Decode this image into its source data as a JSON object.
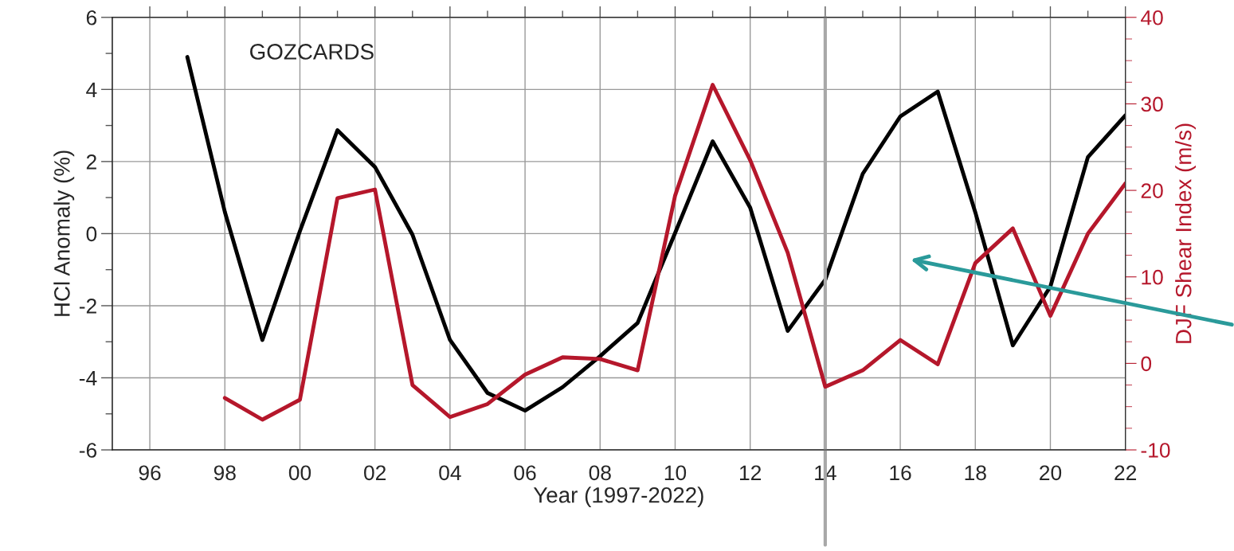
{
  "chart_data": {
    "type": "line",
    "xlabel": "Year (1997-2022)",
    "ylabel": "HCl Anomaly (%)",
    "y2label": "DJF Shear Index (m/s)",
    "annotations": [
      "GOZCARDS"
    ],
    "series": [
      {
        "color": "#000000",
        "x": [
          1997,
          1998,
          1999,
          2000,
          2001,
          2002,
          2003,
          2004,
          2005,
          2006,
          2007,
          2008,
          2009,
          2010,
          2011,
          2012,
          2013,
          2014,
          2015,
          2016,
          2017,
          2018,
          2019,
          2020,
          2021,
          2022
        ],
        "values": [
          4.9,
          0.6,
          -2.95,
          0.07,
          2.87,
          1.85,
          -0.03,
          -2.95,
          -4.42,
          -4.91,
          -4.26,
          -3.4,
          -2.48,
          0.02,
          2.56,
          0.72,
          -2.7,
          -1.28,
          1.66,
          3.25,
          3.94,
          0.59,
          -3.1,
          -1.47,
          2.12,
          3.28
        ]
      },
      {
        "color": "#b5172b",
        "axis": "y2",
        "x": [
          1998,
          1999,
          2000,
          2001,
          2002,
          2003,
          2004,
          2005,
          2006,
          2007,
          2008,
          2009,
          2010,
          2011,
          2012,
          2013,
          2014,
          2015,
          2016,
          2017,
          2018,
          2019,
          2020,
          2021,
          2022
        ],
        "values": [
          -4.0,
          -6.5,
          -4.2,
          19.1,
          20.1,
          -2.5,
          -6.2,
          -4.7,
          -1.3,
          0.7,
          0.5,
          -0.8,
          19.4,
          32.2,
          23.5,
          12.8,
          -2.7,
          -0.8,
          2.7,
          -0.1,
          11.6,
          15.6,
          5.5,
          15.0,
          20.8
        ]
      }
    ],
    "xlim": [
      1995,
      2022
    ],
    "xticks": [
      {
        "value": 1996,
        "label": "96"
      },
      {
        "value": 1997,
        "label": null
      },
      {
        "value": 1998,
        "label": "98"
      },
      {
        "value": 1999,
        "label": null
      },
      {
        "value": 2000,
        "label": "00"
      },
      {
        "value": 2001,
        "label": null
      },
      {
        "value": 2002,
        "label": "02"
      },
      {
        "value": 2003,
        "label": null
      },
      {
        "value": 2004,
        "label": "04"
      },
      {
        "value": 2005,
        "label": null
      },
      {
        "value": 2006,
        "label": "06"
      },
      {
        "value": 2007,
        "label": null
      },
      {
        "value": 2008,
        "label": "08"
      },
      {
        "value": 2009,
        "label": null
      },
      {
        "value": 2010,
        "label": "10"
      },
      {
        "value": 2011,
        "label": null
      },
      {
        "value": 2012,
        "label": "12"
      },
      {
        "value": 2013,
        "label": null
      },
      {
        "value": 2014,
        "label": "14"
      },
      {
        "value": 2015,
        "label": null
      },
      {
        "value": 2016,
        "label": "16"
      },
      {
        "value": 2017,
        "label": null
      },
      {
        "value": 2018,
        "label": "18"
      },
      {
        "value": 2019,
        "label": null
      },
      {
        "value": 2020,
        "label": "20"
      },
      {
        "value": 2021,
        "label": null
      },
      {
        "value": 2022,
        "label": "22"
      }
    ],
    "ylim": [
      -6,
      6
    ],
    "yticks": [
      -6,
      {
        "value": -5,
        "label": null
      },
      -4,
      {
        "value": -3,
        "label": null
      },
      -2,
      {
        "value": -1,
        "label": null
      },
      0,
      {
        "value": 1,
        "label": null
      },
      2,
      {
        "value": 3,
        "label": null
      },
      4,
      {
        "value": 5,
        "label": null
      },
      6
    ],
    "y2lim": [
      -10,
      40
    ],
    "y2ticks": [
      -10,
      {
        "value": -7.5,
        "label": null
      },
      {
        "value": -5,
        "label": null
      },
      {
        "value": -2.5,
        "label": null
      },
      0,
      {
        "value": 2.5,
        "label": null
      },
      {
        "value": 5,
        "label": null
      },
      {
        "value": 7.5,
        "label": null
      },
      10,
      {
        "value": 12.5,
        "label": null
      },
      {
        "value": 15,
        "label": null
      },
      {
        "value": 17.5,
        "label": null
      },
      20,
      {
        "value": 22.5,
        "label": null
      },
      {
        "value": 25,
        "label": null
      },
      {
        "value": 27.5,
        "label": null
      },
      30,
      {
        "value": 32.5,
        "label": null
      },
      {
        "value": 35,
        "label": null
      },
      {
        "value": 37.5,
        "label": null
      },
      40
    ],
    "ref_lines": [
      {
        "axis": "x",
        "value": 2014,
        "color": "#a8a8a8"
      }
    ],
    "grid": true,
    "legend": false,
    "marker": "none",
    "line_style": "solid"
  }
}
